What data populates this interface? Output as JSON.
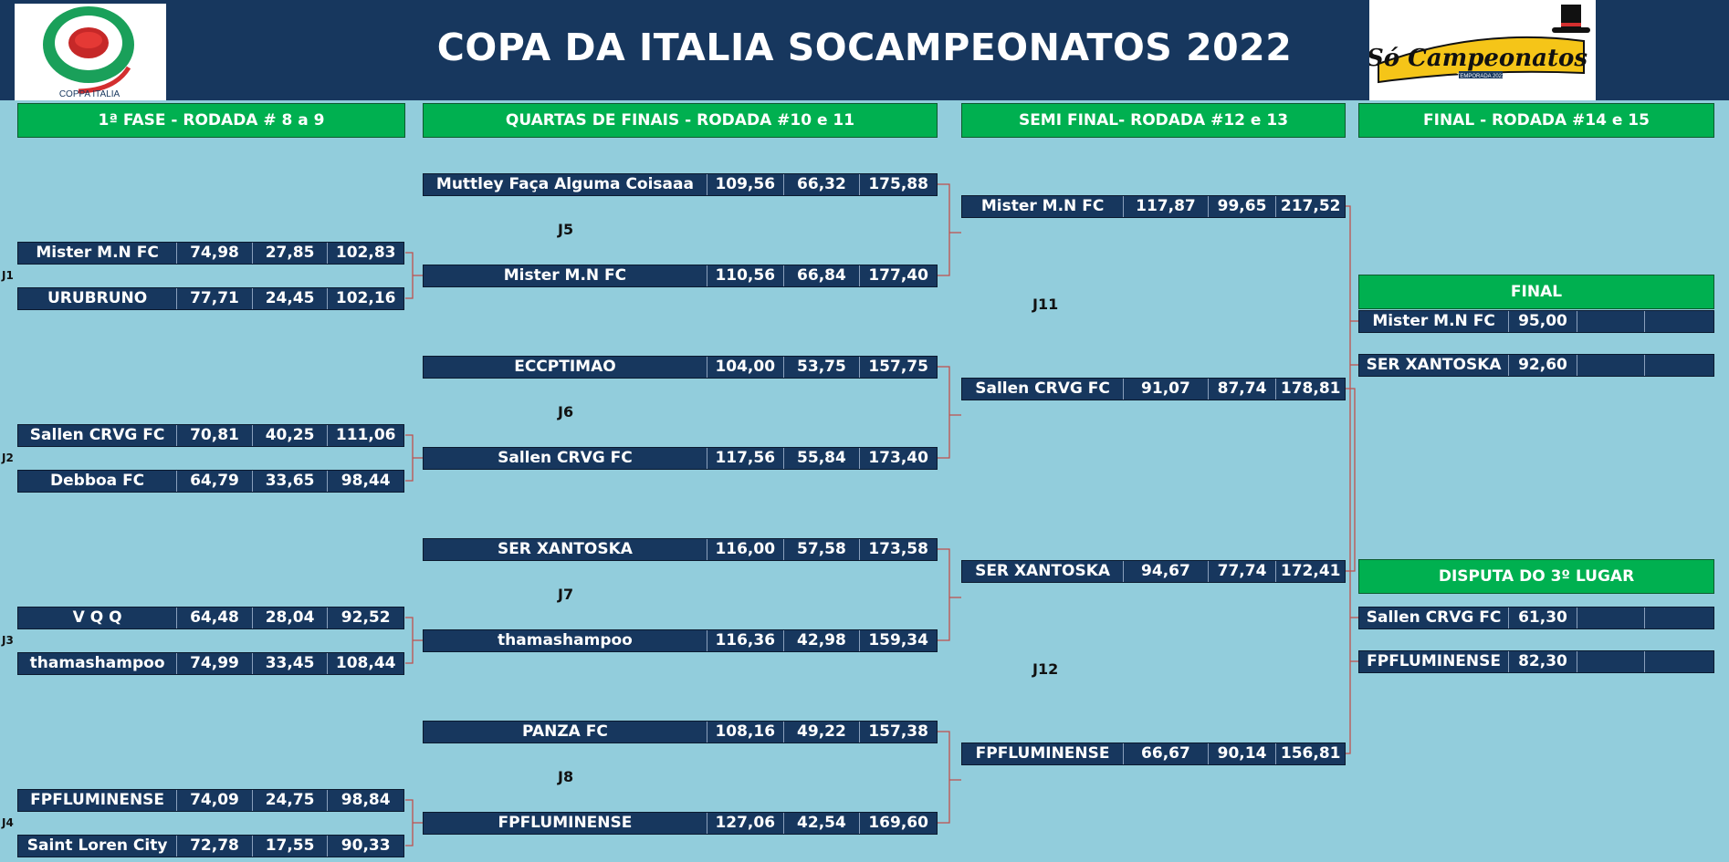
{
  "title": "COPA DA ITALIA SOCAMPEONATOS 2022",
  "logos": {
    "left_text": "COPPA ITALIA",
    "right_text": "Só Campeonatos",
    "right_subtext": "TEMPORADA 2022"
  },
  "stages": {
    "r1": "1ª FASE - RODADA # 8 a 9",
    "qf": "QUARTAS DE FINAIS - RODADA #10 e 11",
    "sf": "SEMI FINAL- RODADA #12 e 13",
    "final": "FINAL - RODADA #14 e 15"
  },
  "round1": [
    {
      "label": "J1",
      "teams": [
        {
          "name": "Mister M.N FC",
          "s1": "74,98",
          "s2": "27,85",
          "total": "102,83"
        },
        {
          "name": "URUBRUNO",
          "s1": "77,71",
          "s2": "24,45",
          "total": "102,16"
        }
      ]
    },
    {
      "label": "J2",
      "teams": [
        {
          "name": "Sallen CRVG FC",
          "s1": "70,81",
          "s2": "40,25",
          "total": "111,06"
        },
        {
          "name": "Debboa FC",
          "s1": "64,79",
          "s2": "33,65",
          "total": "98,44"
        }
      ]
    },
    {
      "label": "J3",
      "teams": [
        {
          "name": "V Q Q",
          "s1": "64,48",
          "s2": "28,04",
          "total": "92,52"
        },
        {
          "name": "thamashampoo",
          "s1": "74,99",
          "s2": "33,45",
          "total": "108,44"
        }
      ]
    },
    {
      "label": "J4",
      "teams": [
        {
          "name": "FPFLUMINENSE",
          "s1": "74,09",
          "s2": "24,75",
          "total": "98,84"
        },
        {
          "name": "Saint Loren City",
          "s1": "72,78",
          "s2": "17,55",
          "total": "90,33"
        }
      ]
    }
  ],
  "quarters": [
    {
      "label": "J5",
      "teams": [
        {
          "name": "Muttley Faça Alguma Coisaaa",
          "s1": "109,56",
          "s2": "66,32",
          "total": "175,88"
        },
        {
          "name": "Mister M.N FC",
          "s1": "110,56",
          "s2": "66,84",
          "total": "177,40"
        }
      ]
    },
    {
      "label": "J6",
      "teams": [
        {
          "name": "ECCPTIMAO",
          "s1": "104,00",
          "s2": "53,75",
          "total": "157,75"
        },
        {
          "name": "Sallen CRVG FC",
          "s1": "117,56",
          "s2": "55,84",
          "total": "173,40"
        }
      ]
    },
    {
      "label": "J7",
      "teams": [
        {
          "name": "SER XANTOSKA",
          "s1": "116,00",
          "s2": "57,58",
          "total": "173,58"
        },
        {
          "name": "thamashampoo",
          "s1": "116,36",
          "s2": "42,98",
          "total": "159,34"
        }
      ]
    },
    {
      "label": "J8",
      "teams": [
        {
          "name": "PANZA FC",
          "s1": "108,16",
          "s2": "49,22",
          "total": "157,38"
        },
        {
          "name": "FPFLUMINENSE",
          "s1": "127,06",
          "s2": "42,54",
          "total": "169,60"
        }
      ]
    }
  ],
  "semis": [
    {
      "label": "J11",
      "teams": [
        {
          "name": "Mister M.N FC",
          "s1": "117,87",
          "s2": "99,65",
          "total": "217,52"
        },
        {
          "name": "Sallen CRVG FC",
          "s1": "91,07",
          "s2": "87,74",
          "total": "178,81"
        }
      ]
    },
    {
      "label": "J12",
      "teams": [
        {
          "name": "SER XANTOSKA",
          "s1": "94,67",
          "s2": "77,74",
          "total": "172,41"
        },
        {
          "name": "FPFLUMINENSE",
          "s1": "66,67",
          "s2": "90,14",
          "total": "156,81"
        }
      ]
    }
  ],
  "final": {
    "label": "FINAL",
    "teams": [
      {
        "name": "Mister M.N FC",
        "s1": "95,00",
        "s2": ""
      },
      {
        "name": "SER XANTOSKA",
        "s1": "92,60",
        "s2": ""
      }
    ]
  },
  "third": {
    "label": "DISPUTA DO 3º LUGAR",
    "teams": [
      {
        "name": "Sallen CRVG FC",
        "s1": "61,30",
        "s2": ""
      },
      {
        "name": "FPFLUMINENSE",
        "s1": "82,30",
        "s2": ""
      }
    ]
  },
  "colors": {
    "background": "#92cddc",
    "header": "#17375e",
    "stage": "#00b050",
    "row": "#17375e",
    "connector": "#c0504d"
  }
}
